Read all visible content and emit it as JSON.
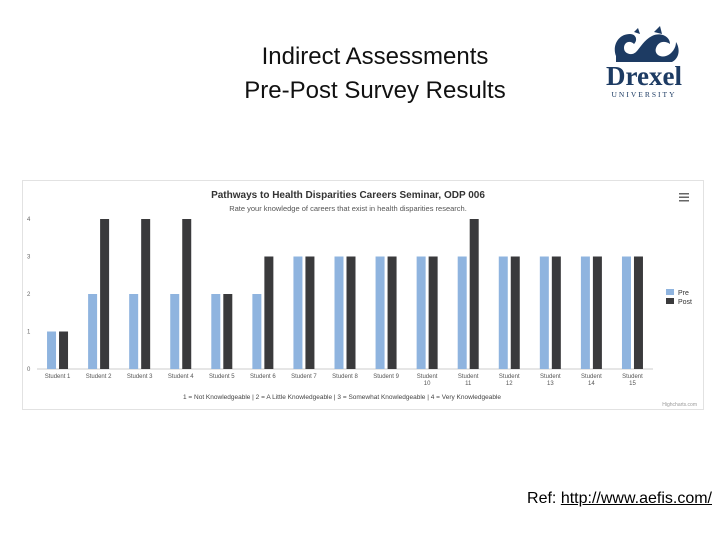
{
  "slide": {
    "title_line1": "Indirect Assessments",
    "title_line2": "Pre-Post Survey Results",
    "ref_label": "Ref:",
    "ref_link": "http://www.aefis.com/"
  },
  "logo": {
    "name": "Drexel",
    "sub": "UNIVERSITY",
    "color": "#1d3b63"
  },
  "chart_data": {
    "type": "bar",
    "title": "Pathways to Health Disparities Careers Seminar, ODP 006",
    "subtitle": "Rate your knowledge of careers that exist in health disparities research.",
    "caption": "1 = Not Knowledgeable  |  2 = A Little Knowledgeable  |  3 = Somewhat Knowledgeable  |  4 = Very Knowledgeable",
    "categories": [
      "Student 1",
      "Student 2",
      "Student 3",
      "Student 4",
      "Student 5",
      "Student 6",
      "Student 7",
      "Student 8",
      "Student 9",
      "Student 10",
      "Student 11",
      "Student 12",
      "Student 13",
      "Student 14",
      "Student 15"
    ],
    "series": [
      {
        "name": "Pre",
        "color": "#8fb4df",
        "values": [
          1,
          2,
          2,
          2,
          2,
          2,
          3,
          3,
          3,
          3,
          3,
          3,
          3,
          3,
          3
        ]
      },
      {
        "name": "Post",
        "color": "#3a3a3c",
        "values": [
          1,
          4,
          4,
          4,
          2,
          3,
          3,
          3,
          3,
          3,
          4,
          3,
          3,
          3,
          3
        ]
      }
    ],
    "ylim": [
      0,
      4
    ],
    "yticks": [
      0,
      1,
      2,
      3,
      4
    ],
    "grid": false,
    "legend": "right",
    "menu_icon": "hamburger-menu-icon",
    "credit": "Highcharts.com"
  }
}
